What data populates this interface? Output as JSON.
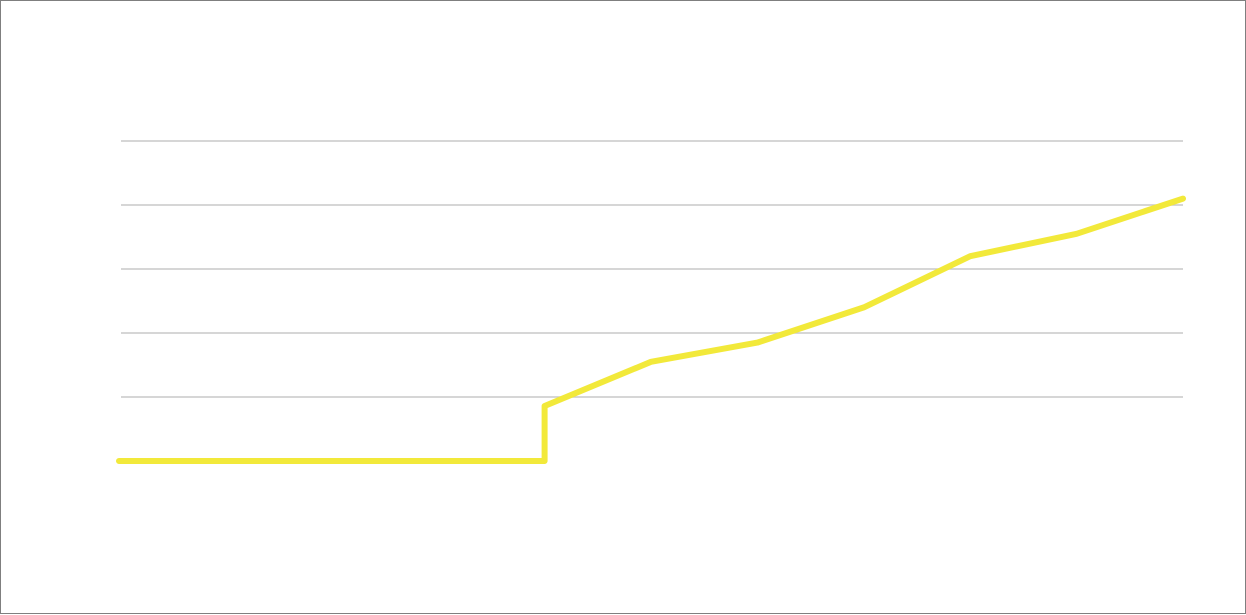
{
  "chart_data": {
    "type": "line",
    "title": "",
    "xlabel": "",
    "ylabel": "",
    "x": [
      1,
      2,
      3,
      4,
      5,
      5,
      6,
      7,
      8,
      9,
      10,
      11
    ],
    "series": [
      {
        "color": "#f2e93a",
        "values": [
          0,
          0,
          0,
          0,
          0,
          0.86,
          1.55,
          1.85,
          2.4,
          3.2,
          3.55,
          4.1
        ]
      }
    ],
    "ylim": [
      0,
      5
    ],
    "xlim": [
      1,
      11
    ],
    "grid": true
  }
}
